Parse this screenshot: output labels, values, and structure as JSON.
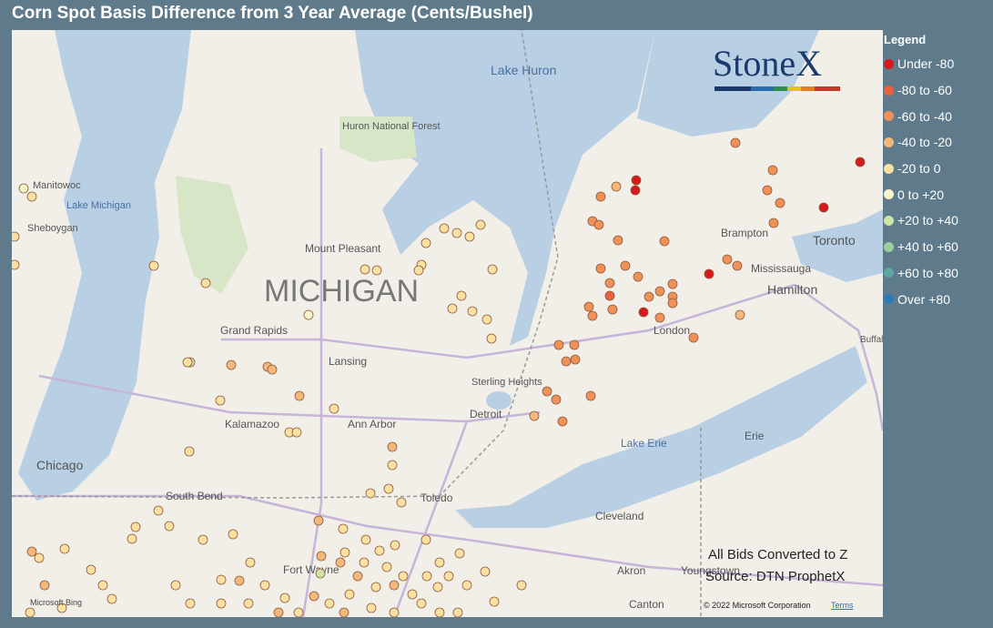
{
  "header": {
    "title": "Corn Spot Basis Difference from 3 Year Average (Cents/Bushel)"
  },
  "legend": {
    "title": "Legend",
    "items": [
      {
        "label": "Under -80",
        "color": "#d7191c"
      },
      {
        "label": "-80 to -60",
        "color": "#e8603c"
      },
      {
        "label": "-60 to -40",
        "color": "#f0915a"
      },
      {
        "label": "-40 to -20",
        "color": "#f5b87c"
      },
      {
        "label": "-20 to 0",
        "color": "#fbe0a2"
      },
      {
        "label": "0 to +20",
        "color": "#f8f6c8"
      },
      {
        "label": "+20 to +40",
        "color": "#cde6a6"
      },
      {
        "label": "+40 to +60",
        "color": "#9dcf9b"
      },
      {
        "label": "+60 to +80",
        "color": "#5aa7a2"
      },
      {
        "label": "Over +80",
        "color": "#2c7bb6"
      }
    ]
  },
  "logo": "StoneX",
  "map_labels": [
    "MICHIGAN",
    "Lake Huron",
    "Huron National Forest",
    "Manitowoc",
    "Lake Michigan",
    "Sheboygan",
    "Mount Pleasant",
    "Grand Rapids",
    "Lansing",
    "Kalamazoo",
    "Ann Arbor",
    "Detroit",
    "Sterling Heights",
    "Chicago",
    "South Bend",
    "Toledo",
    "Fort Wayne",
    "London",
    "Brampton",
    "Toronto",
    "Mississauga",
    "Hamilton",
    "Lake Erie",
    "Erie",
    "Cleveland",
    "Akron",
    "Youngstown",
    "Canton",
    "Buffalo"
  ],
  "notes": [
    "All Bids Converted to Z",
    "Source: DTN ProphetX"
  ],
  "attribution": {
    "bing": "Microsoft Bing",
    "copyright": "© 2022 Microsoft Corporation",
    "terms": "Terms"
  }
}
